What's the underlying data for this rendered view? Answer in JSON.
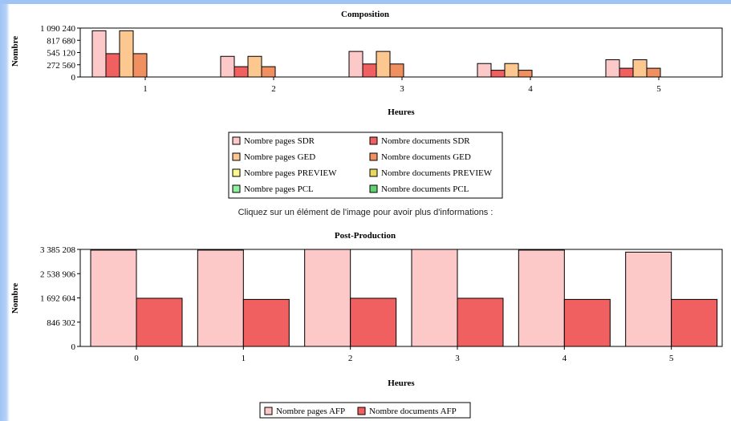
{
  "instruction": "Cliquez sur un élément de l'image pour avoir plus d'informations :",
  "chart_data": [
    {
      "type": "bar",
      "title": "Composition",
      "xlabel": "Heures",
      "ylabel": "Nombre",
      "categories": [
        "1",
        "2",
        "3",
        "4",
        "5"
      ],
      "ylim": [
        0,
        1090240
      ],
      "yticks": [
        "0",
        "272 560",
        "545 120",
        "817 680",
        "1 090 240"
      ],
      "yticks_values": [
        0,
        272560,
        545120,
        817680,
        1090240
      ],
      "series": [
        {
          "name": "Nombre pages SDR",
          "color": "#fcc8c8",
          "values": [
            1030000,
            460000,
            570000,
            300000,
            385000
          ]
        },
        {
          "name": "Nombre documents SDR",
          "color": "#f06060",
          "values": [
            520000,
            230000,
            290000,
            150000,
            195000
          ]
        },
        {
          "name": "Nombre pages GED",
          "color": "#fcc890",
          "values": [
            1030000,
            460000,
            570000,
            300000,
            385000
          ]
        },
        {
          "name": "Nombre documents GED",
          "color": "#f09060",
          "values": [
            520000,
            230000,
            290000,
            150000,
            195000
          ]
        },
        {
          "name": "Nombre pages PREVIEW",
          "color": "#fcf890",
          "values": [
            0,
            0,
            0,
            0,
            0
          ]
        },
        {
          "name": "Nombre documents PREVIEW",
          "color": "#e8d860",
          "values": [
            0,
            0,
            0,
            0,
            0
          ]
        },
        {
          "name": "Nombre pages PCL",
          "color": "#90f0a0",
          "values": [
            0,
            0,
            0,
            0,
            0
          ]
        },
        {
          "name": "Nombre documents PCL",
          "color": "#60d070",
          "values": [
            0,
            0,
            0,
            0,
            0
          ]
        }
      ],
      "legend": [
        "Nombre pages SDR",
        "Nombre documents SDR",
        "Nombre pages GED",
        "Nombre documents GED",
        "Nombre pages PREVIEW",
        "Nombre documents PREVIEW",
        "Nombre pages PCL",
        "Nombre documents PCL"
      ]
    },
    {
      "type": "bar",
      "title": "Post-Production",
      "xlabel": "Heures",
      "ylabel": "Nombre",
      "categories": [
        "0",
        "1",
        "2",
        "3",
        "4",
        "5"
      ],
      "ylim": [
        0,
        3385208
      ],
      "yticks": [
        "0",
        "846 302",
        "1 692 604",
        "2 538 906",
        "3 385 208"
      ],
      "yticks_values": [
        0,
        846302,
        1692604,
        2538906,
        3385208
      ],
      "series": [
        {
          "name": "Nombre pages AFP",
          "color": "#fcc8c8",
          "values": [
            3360000,
            3360000,
            3385000,
            3385000,
            3360000,
            3290000
          ]
        },
        {
          "name": "Nombre documents AFP",
          "color": "#f06060",
          "values": [
            1680000,
            1640000,
            1680000,
            1680000,
            1640000,
            1640000
          ]
        }
      ],
      "legend": [
        "Nombre pages AFP",
        "Nombre documents AFP"
      ]
    }
  ]
}
